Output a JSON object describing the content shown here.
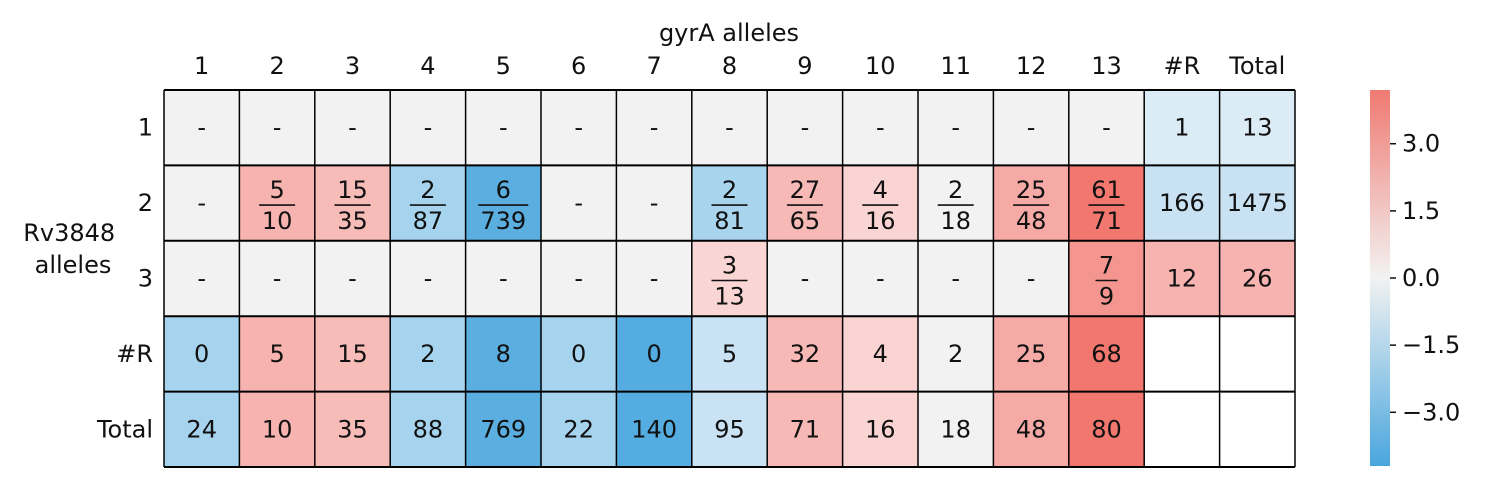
{
  "chart_data": {
    "type": "heatmap",
    "title": "gyrA alleles",
    "ylabel_lines": [
      "Rv3848",
      "alleles"
    ],
    "columns": [
      "1",
      "2",
      "3",
      "4",
      "5",
      "6",
      "7",
      "8",
      "9",
      "10",
      "11",
      "12",
      "13",
      "#R",
      "Total"
    ],
    "rows": [
      "1",
      "2",
      "3",
      "#R",
      "Total"
    ],
    "cells": [
      [
        {
          "kind": "dash",
          "color": "#f2f2f2"
        },
        {
          "kind": "dash",
          "color": "#f2f2f2"
        },
        {
          "kind": "dash",
          "color": "#f2f2f2"
        },
        {
          "kind": "dash",
          "color": "#f2f2f2"
        },
        {
          "kind": "dash",
          "color": "#f2f2f2"
        },
        {
          "kind": "dash",
          "color": "#f2f2f2"
        },
        {
          "kind": "dash",
          "color": "#f2f2f2"
        },
        {
          "kind": "dash",
          "color": "#f2f2f2"
        },
        {
          "kind": "dash",
          "color": "#f2f2f2"
        },
        {
          "kind": "dash",
          "color": "#f2f2f2"
        },
        {
          "kind": "dash",
          "color": "#f2f2f2"
        },
        {
          "kind": "dash",
          "color": "#f2f2f2"
        },
        {
          "kind": "dash",
          "color": "#f2f2f2"
        },
        {
          "kind": "num",
          "value": "1",
          "color": "#dcecf7"
        },
        {
          "kind": "num",
          "value": "13",
          "color": "#dcecf7"
        }
      ],
      [
        {
          "kind": "dash",
          "color": "#f2f2f2"
        },
        {
          "kind": "frac",
          "num": "5",
          "den": "10",
          "color": "#f6b3b0"
        },
        {
          "kind": "frac",
          "num": "15",
          "den": "35",
          "color": "#f7bbb8"
        },
        {
          "kind": "frac",
          "num": "2",
          "den": "87",
          "color": "#a6d3ee"
        },
        {
          "kind": "frac",
          "num": "6",
          "den": "739",
          "color": "#5aaee0"
        },
        {
          "kind": "dash",
          "color": "#f2f2f2"
        },
        {
          "kind": "dash",
          "color": "#f2f2f2"
        },
        {
          "kind": "frac",
          "num": "2",
          "den": "81",
          "color": "#a9d4ee"
        },
        {
          "kind": "frac",
          "num": "27",
          "den": "65",
          "color": "#f7b9b6"
        },
        {
          "kind": "frac",
          "num": "4",
          "den": "16",
          "color": "#f9d4d2"
        },
        {
          "kind": "frac",
          "num": "2",
          "den": "18",
          "color": "#f2f2f2"
        },
        {
          "kind": "frac",
          "num": "25",
          "den": "48",
          "color": "#f5aaa6"
        },
        {
          "kind": "frac",
          "num": "61",
          "den": "71",
          "color": "#f2776f"
        },
        {
          "kind": "num",
          "value": "166",
          "color": "#c9e2f3"
        },
        {
          "kind": "num",
          "value": "1475",
          "color": "#c9e2f3"
        }
      ],
      [
        {
          "kind": "dash",
          "color": "#f2f2f2"
        },
        {
          "kind": "dash",
          "color": "#f2f2f2"
        },
        {
          "kind": "dash",
          "color": "#f2f2f2"
        },
        {
          "kind": "dash",
          "color": "#f2f2f2"
        },
        {
          "kind": "dash",
          "color": "#f2f2f2"
        },
        {
          "kind": "dash",
          "color": "#f2f2f2"
        },
        {
          "kind": "dash",
          "color": "#f2f2f2"
        },
        {
          "kind": "frac",
          "num": "3",
          "den": "13",
          "color": "#f9d6d4"
        },
        {
          "kind": "dash",
          "color": "#f2f2f2"
        },
        {
          "kind": "dash",
          "color": "#f2f2f2"
        },
        {
          "kind": "dash",
          "color": "#f2f2f2"
        },
        {
          "kind": "dash",
          "color": "#f2f2f2"
        },
        {
          "kind": "frac",
          "num": "7",
          "den": "9",
          "color": "#f4958f"
        },
        {
          "kind": "num",
          "value": "12",
          "color": "#f6b3b0"
        },
        {
          "kind": "num",
          "value": "26",
          "color": "#f6b3b0"
        }
      ],
      [
        {
          "kind": "num",
          "value": "0",
          "color": "#a6d3ee"
        },
        {
          "kind": "num",
          "value": "5",
          "color": "#f6b3b0"
        },
        {
          "kind": "num",
          "value": "15",
          "color": "#f7bbb8"
        },
        {
          "kind": "num",
          "value": "2",
          "color": "#a6d3ee"
        },
        {
          "kind": "num",
          "value": "8",
          "color": "#5aaee0"
        },
        {
          "kind": "num",
          "value": "0",
          "color": "#a6d3ee"
        },
        {
          "kind": "num",
          "value": "0",
          "color": "#55ace0"
        },
        {
          "kind": "num",
          "value": "5",
          "color": "#c9e3f4"
        },
        {
          "kind": "num",
          "value": "32",
          "color": "#f7b9b6"
        },
        {
          "kind": "num",
          "value": "4",
          "color": "#f9d4d2"
        },
        {
          "kind": "num",
          "value": "2",
          "color": "#f2f2f2"
        },
        {
          "kind": "num",
          "value": "25",
          "color": "#f5aaa6"
        },
        {
          "kind": "num",
          "value": "68",
          "color": "#f2776f"
        },
        {
          "kind": "blank",
          "color": "#ffffff"
        },
        {
          "kind": "blank",
          "color": "#ffffff"
        }
      ],
      [
        {
          "kind": "num",
          "value": "24",
          "color": "#a6d3ee"
        },
        {
          "kind": "num",
          "value": "10",
          "color": "#f6b3b0"
        },
        {
          "kind": "num",
          "value": "35",
          "color": "#f7bbb8"
        },
        {
          "kind": "num",
          "value": "88",
          "color": "#a6d3ee"
        },
        {
          "kind": "num",
          "value": "769",
          "color": "#5aaee0"
        },
        {
          "kind": "num",
          "value": "22",
          "color": "#a6d3ee"
        },
        {
          "kind": "num",
          "value": "140",
          "color": "#55ace0"
        },
        {
          "kind": "num",
          "value": "95",
          "color": "#c9e3f4"
        },
        {
          "kind": "num",
          "value": "71",
          "color": "#f7b9b6"
        },
        {
          "kind": "num",
          "value": "16",
          "color": "#f9d4d2"
        },
        {
          "kind": "num",
          "value": "18",
          "color": "#f2f2f2"
        },
        {
          "kind": "num",
          "value": "48",
          "color": "#f5aaa6"
        },
        {
          "kind": "num",
          "value": "80",
          "color": "#f2776f"
        },
        {
          "kind": "blank",
          "color": "#ffffff"
        },
        {
          "kind": "blank",
          "color": "#ffffff"
        }
      ]
    ],
    "colorbar": {
      "ticks": [
        3.0,
        1.5,
        0.0,
        -1.5,
        -3.0
      ],
      "tick_labels": [
        "3.0",
        "1.5",
        "0.0",
        "−1.5",
        "−3.0"
      ],
      "range": [
        -4.2,
        4.2
      ],
      "low_color": "#4aa6de",
      "mid_color": "#f2f2f2",
      "high_color": "#f07a72"
    },
    "grid_color": "#000000",
    "legend": "right"
  }
}
